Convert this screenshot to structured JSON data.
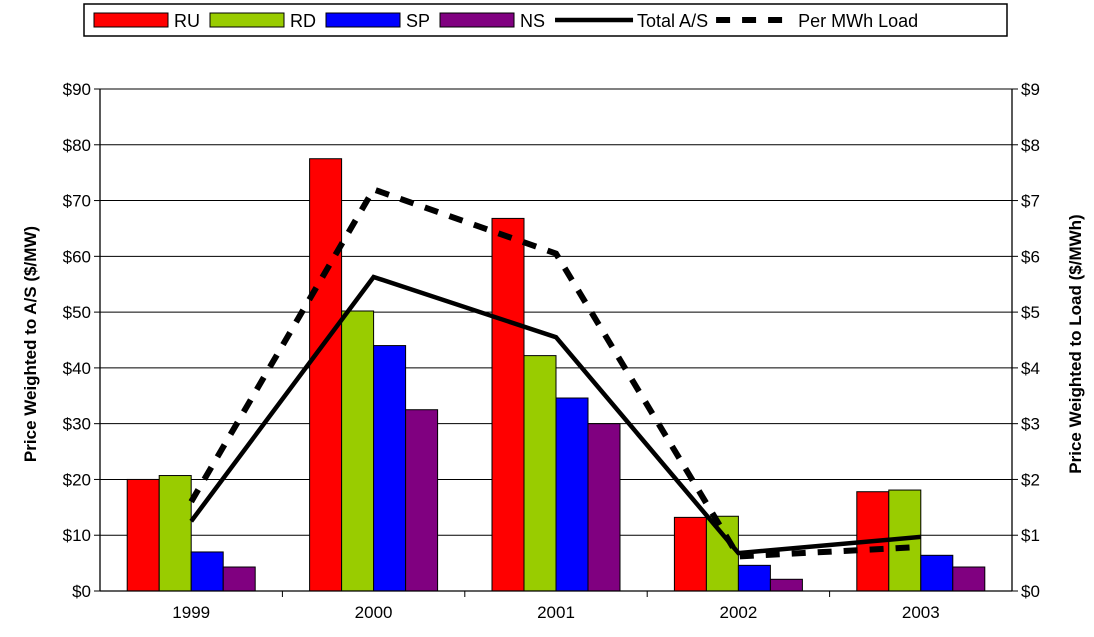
{
  "chart_data": {
    "type": "bar",
    "categories": [
      "1999",
      "2000",
      "2001",
      "2002",
      "2003"
    ],
    "series": [
      {
        "name": "RU",
        "kind": "bar",
        "axis": "left",
        "color": "#ff0000",
        "values": [
          20.0,
          77.5,
          66.8,
          13.2,
          17.8
        ]
      },
      {
        "name": "RD",
        "kind": "bar",
        "axis": "left",
        "color": "#99cc00",
        "values": [
          20.7,
          50.2,
          42.2,
          13.4,
          18.1
        ]
      },
      {
        "name": "SP",
        "kind": "bar",
        "axis": "left",
        "color": "#0000ff",
        "values": [
          7.0,
          44.0,
          34.6,
          4.6,
          6.4
        ]
      },
      {
        "name": "NS",
        "kind": "bar",
        "axis": "left",
        "color": "#800080",
        "values": [
          4.3,
          32.5,
          30.0,
          2.1,
          4.3
        ]
      },
      {
        "name": "Total A/S",
        "kind": "line",
        "style": "solid",
        "axis": "right",
        "color": "#000000",
        "values": [
          1.25,
          5.63,
          4.55,
          0.68,
          0.97
        ]
      },
      {
        "name": "Per MWh Load",
        "kind": "line",
        "style": "dashed",
        "axis": "right",
        "color": "#000000",
        "values": [
          1.6,
          7.2,
          6.05,
          0.62,
          0.79
        ]
      }
    ],
    "ylabel": "Price Weighted to A/S ($/MW)",
    "y2label": "Price Weighted to Load ($/MWh)",
    "ylim": [
      0,
      90
    ],
    "y2lim": [
      0,
      9
    ],
    "yticks": [
      "$0",
      "$10",
      "$20",
      "$30",
      "$40",
      "$50",
      "$60",
      "$70",
      "$80",
      "$90"
    ],
    "y2ticks": [
      "$0",
      "$1",
      "$2",
      "$3",
      "$4",
      "$5",
      "$6",
      "$7",
      "$8",
      "$9"
    ],
    "grid": true,
    "legend_position": "top"
  }
}
